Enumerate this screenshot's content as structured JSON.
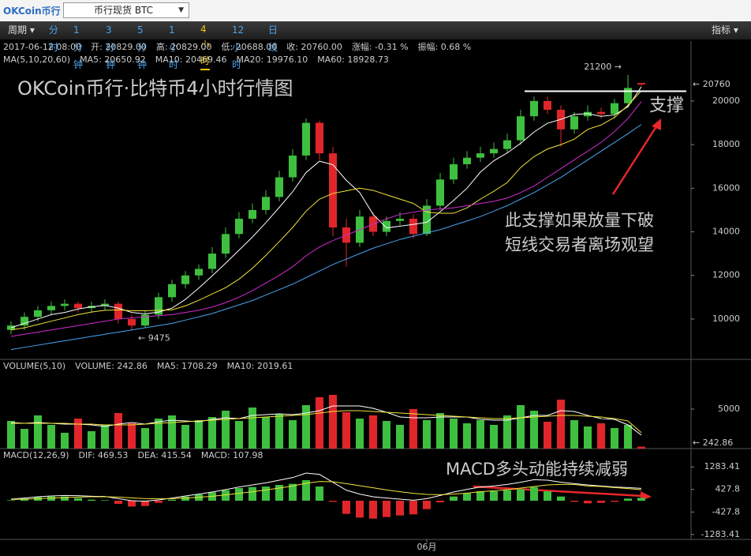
{
  "header": {
    "logo": "OKCoin币行",
    "select": "币行现货 BTC"
  },
  "toolbar": {
    "period": "周期 ▾",
    "tabs": [
      "分时",
      "1分钟",
      "3分钟",
      "5分钟",
      "1小时",
      "4小时",
      "12小时",
      "日线"
    ],
    "active": 5,
    "indicator": "指标 ▾"
  },
  "chart_data": [
    {
      "type": "candlestick",
      "title": "OKCoin币行·比特币4小时行情图",
      "info": [
        "2017-06-12 08:00",
        "开: 20829.00",
        "高: 20829.00",
        "低: 20688.00",
        "收: 20760.00",
        "涨幅: -0.31 %",
        "振幅: 0.68 %"
      ],
      "legend_title": "MA(5,10,20,60)",
      "up_color": "#3fbf3f",
      "down_color": "#e0262b",
      "open": [
        9500,
        9700,
        10100,
        10400,
        10600,
        10700,
        10500,
        10600,
        10700,
        10000,
        9700,
        10200,
        11000,
        11600,
        12000,
        12300,
        13000,
        13900,
        14600,
        15000,
        15600,
        16500,
        17500,
        19000,
        17600,
        14200,
        13500,
        14700,
        14000,
        14500,
        14600,
        13900,
        15200,
        16400,
        17100,
        17400,
        17600,
        17800,
        18200,
        19300,
        20000,
        19600,
        18700,
        19300,
        19500,
        19400,
        19900,
        20829
      ],
      "high": [
        9900,
        10300,
        10600,
        10800,
        10900,
        10800,
        10800,
        10900,
        10800,
        10200,
        10400,
        11200,
        11800,
        12200,
        12500,
        13300,
        14200,
        14900,
        15300,
        15900,
        16800,
        17800,
        19200,
        19100,
        17900,
        14600,
        15000,
        14900,
        14700,
        14900,
        14800,
        15500,
        16700,
        17400,
        17700,
        17900,
        18100,
        18500,
        19600,
        20200,
        20200,
        19800,
        19500,
        19800,
        19700,
        20100,
        21200,
        20829
      ],
      "low": [
        9300,
        9500,
        9900,
        10200,
        10400,
        10300,
        10300,
        10400,
        9800,
        9475,
        9600,
        10000,
        10800,
        11400,
        11800,
        12100,
        12800,
        13700,
        14400,
        14800,
        15400,
        16300,
        17300,
        17300,
        13800,
        12400,
        13300,
        13800,
        13800,
        14300,
        13700,
        13800,
        15000,
        16200,
        16900,
        17200,
        17400,
        17600,
        18000,
        19100,
        19400,
        17900,
        18500,
        19100,
        19200,
        19200,
        19700,
        20688
      ],
      "close": [
        9700,
        10100,
        10400,
        10600,
        10700,
        10500,
        10600,
        10700,
        10000,
        9700,
        10200,
        11000,
        11600,
        12000,
        12300,
        13000,
        13900,
        14600,
        15000,
        15600,
        16500,
        17500,
        19000,
        17600,
        14200,
        13500,
        14700,
        14000,
        14500,
        14600,
        13900,
        15200,
        16400,
        17100,
        17400,
        17600,
        17800,
        18200,
        19300,
        20000,
        19600,
        18700,
        19300,
        19500,
        19400,
        19900,
        20600,
        20760
      ],
      "series": [
        {
          "name": "MA5: 20650.92",
          "color": "#ffffff",
          "values": [
            9600,
            9800,
            10000,
            10200,
            10300,
            10460,
            10560,
            10620,
            10500,
            10300,
            10240,
            10320,
            10500,
            10900,
            11420,
            11980,
            12560,
            13160,
            13760,
            14420,
            15120,
            15840,
            16720,
            17240,
            17080,
            16360,
            15800,
            14800,
            14180,
            14260,
            14340,
            14440,
            14920,
            15440,
            16000,
            16740,
            17260,
            17620,
            18060,
            18580,
            18980,
            19160,
            19380,
            19420,
            19300,
            19360,
            19740,
            20650.92
          ]
        },
        {
          "name": "MA10: 20469.46",
          "color": "#f2e33a",
          "values": [
            9500,
            9600,
            9750,
            9900,
            10050,
            10200,
            10320,
            10400,
            10420,
            10380,
            10380,
            10400,
            10420,
            10600,
            10860,
            11150,
            11440,
            11830,
            12330,
            12920,
            13550,
            14200,
            14950,
            15500,
            15760,
            15880,
            16000,
            15900,
            15700,
            15500,
            15300,
            14900,
            14850,
            14850,
            15100,
            15500,
            15860,
            16260,
            16950,
            17450,
            17800,
            18000,
            18250,
            18700,
            18900,
            19250,
            19800,
            20469.46
          ]
        },
        {
          "name": "MA20: 19976.10",
          "color": "#d12bd1",
          "values": [
            9200,
            9300,
            9400,
            9500,
            9600,
            9700,
            9800,
            9900,
            10000,
            10050,
            10100,
            10150,
            10200,
            10300,
            10400,
            10550,
            10750,
            11000,
            11300,
            11650,
            12000,
            12400,
            12900,
            13300,
            13600,
            13850,
            14100,
            14350,
            14600,
            14800,
            14900,
            15000,
            15050,
            15100,
            15200,
            15300,
            15400,
            15550,
            15800,
            16100,
            16500,
            16900,
            17300,
            17700,
            18100,
            18600,
            19200,
            19976.1
          ]
        },
        {
          "name": "MA60: 18928.73",
          "color": "#4aa3f0",
          "values": [
            8600,
            8700,
            8800,
            8900,
            9000,
            9100,
            9200,
            9300,
            9400,
            9500,
            9600,
            9700,
            9800,
            9950,
            10100,
            10250,
            10450,
            10650,
            10850,
            11100,
            11350,
            11600,
            11900,
            12200,
            12500,
            12750,
            13000,
            13250,
            13450,
            13650,
            13800,
            13950,
            14100,
            14300,
            14500,
            14700,
            14950,
            15200,
            15500,
            15800,
            16150,
            16500,
            16900,
            17300,
            17700,
            18100,
            18500,
            18928.73
          ]
        }
      ],
      "ylim": [
        8150,
        22750
      ],
      "yticks": [
        10000,
        12000,
        14000,
        16000,
        18000,
        20000
      ],
      "max_marker": {
        "value": 21200,
        "label": "21200 →"
      },
      "min_marker": {
        "value": 9475,
        "label": "← 9475"
      },
      "last_price": {
        "value": 20760,
        "label": "← 20760"
      },
      "support": {
        "value": 20450,
        "label": "支撑"
      },
      "annotation": [
        "此支撑如果放量下破",
        "短线交易者离场观望"
      ]
    },
    {
      "type": "volume",
      "title": "VOLUME(5,10)",
      "legend_title": "VOLUME: 242.86",
      "values": [
        3500,
        2500,
        4200,
        3000,
        2000,
        3800,
        2200,
        3000,
        4500,
        3200,
        2600,
        3800,
        4200,
        3000,
        3600,
        4000,
        4800,
        3500,
        5200,
        4000,
        4400,
        3600,
        5500,
        6500,
        6800,
        4600,
        3800,
        4200,
        3500,
        3000,
        5000,
        3600,
        4500,
        3800,
        3200,
        3600,
        3000,
        4200,
        5500,
        4800,
        3400,
        6200,
        3600,
        2800,
        3200,
        2600,
        3000,
        242.86
      ],
      "series": [
        {
          "name": "MA5: 1708.29",
          "color": "#ffffff",
          "values": [
            3300,
            3200,
            3300,
            3200,
            3100,
            3100,
            3000,
            2800,
            3100,
            3300,
            3100,
            3400,
            3600,
            3500,
            3400,
            3700,
            3900,
            3800,
            4200,
            4300,
            4400,
            4300,
            4500,
            4800,
            5400,
            5400,
            5400,
            5100,
            4600,
            4000,
            3900,
            3900,
            4000,
            4000,
            4000,
            3700,
            3600,
            3600,
            3900,
            4200,
            4200,
            4800,
            4700,
            4200,
            3800,
            3700,
            3000,
            1708.29
          ]
        },
        {
          "name": "MA10: 2019.61",
          "color": "#f2e33a",
          "values": [
            3200,
            3200,
            3200,
            3200,
            3200,
            3100,
            3100,
            3000,
            3000,
            3000,
            3100,
            3200,
            3300,
            3400,
            3500,
            3600,
            3700,
            3800,
            3900,
            4000,
            4100,
            4200,
            4300,
            4500,
            4700,
            4800,
            4800,
            4700,
            4600,
            4500,
            4400,
            4300,
            4200,
            4100,
            4000,
            3900,
            3800,
            3800,
            3900,
            4000,
            4100,
            4200,
            4200,
            4100,
            4000,
            3800,
            3500,
            2019.61
          ]
        }
      ],
      "ylim": [
        0,
        11300
      ],
      "yticks": [
        5000
      ],
      "last_value": {
        "value": 242.86,
        "label": "← 242.86"
      }
    },
    {
      "type": "macd",
      "title": "MACD(12,26,9)",
      "categories": [
        null,
        null,
        null,
        null,
        null,
        null,
        null,
        null,
        null,
        null,
        null,
        null,
        null,
        null,
        null,
        null,
        null,
        null,
        null,
        null,
        null,
        null,
        null,
        null,
        null,
        null,
        null,
        null,
        null,
        null,
        null,
        "06月",
        null,
        null,
        null,
        null,
        null,
        null,
        null,
        null,
        null,
        null,
        null,
        null,
        null,
        null,
        null,
        null
      ],
      "values": [
        20,
        80,
        140,
        160,
        160,
        100,
        40,
        20,
        -120,
        -220,
        -200,
        -80,
        40,
        160,
        240,
        320,
        400,
        480,
        520,
        540,
        600,
        640,
        780,
        540,
        -40,
        -500,
        -640,
        -680,
        -620,
        -560,
        -520,
        -320,
        -60,
        160,
        280,
        360,
        360,
        400,
        440,
        520,
        360,
        160,
        -40,
        -100,
        -80,
        -40,
        80,
        107.98
      ],
      "name": "MACD: 107.98",
      "name_color": "#d12bd1",
      "series": [
        {
          "name": "DIF: 469.53",
          "color": "#ffffff",
          "values": [
            60,
            100,
            150,
            180,
            200,
            190,
            170,
            160,
            80,
            0,
            -20,
            30,
            100,
            180,
            250,
            330,
            420,
            520,
            600,
            680,
            780,
            880,
            1050,
            1000,
            700,
            400,
            250,
            150,
            100,
            60,
            20,
            80,
            200,
            330,
            430,
            520,
            560,
            620,
            700,
            800,
            780,
            700,
            650,
            600,
            560,
            520,
            500,
            469.53
          ]
        },
        {
          "name": "DEA: 415.54",
          "color": "#f2e33a",
          "values": [
            50,
            60,
            80,
            100,
            120,
            140,
            150,
            150,
            140,
            110,
            80,
            70,
            80,
            100,
            130,
            170,
            220,
            280,
            340,
            410,
            480,
            560,
            660,
            730,
            720,
            650,
            570,
            490,
            410,
            340,
            280,
            240,
            230,
            250,
            290,
            340,
            380,
            420,
            480,
            540,
            600,
            620,
            620,
            560,
            540,
            500,
            460,
            415.54
          ]
        }
      ],
      "ylim": [
        -1470,
        1980
      ],
      "yticks": [
        -1283.41,
        -427.8,
        427.8,
        1283.41
      ],
      "annotation": "MACD多头动能持续减弱"
    }
  ]
}
